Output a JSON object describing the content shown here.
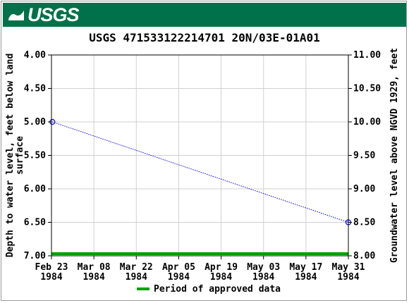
{
  "header": {
    "logo_text": "USGS",
    "banner_color": "#00714a"
  },
  "chart_data": {
    "type": "line",
    "title": "USGS 471533122214701 20N/03E-01A01",
    "ylabel_left": [
      "Depth to water level, feet below land",
      "surface"
    ],
    "ylabel_right": "Groundwater level above NGVD 1929, feet",
    "x_tick_labels": [
      [
        "Feb 23",
        "1984"
      ],
      [
        "Mar 08",
        "1984"
      ],
      [
        "Mar 22",
        "1984"
      ],
      [
        "Apr 05",
        "1984"
      ],
      [
        "Apr 19",
        "1984"
      ],
      [
        "May 03",
        "1984"
      ],
      [
        "May 17",
        "1984"
      ],
      [
        "May 31",
        "1984"
      ]
    ],
    "xlim_days": [
      0,
      98
    ],
    "ylim_left": [
      4.0,
      7.0
    ],
    "ylim_right": [
      11.0,
      8.0
    ],
    "y_ticks_left": [
      "4.00",
      "4.50",
      "5.00",
      "5.50",
      "6.00",
      "6.50",
      "7.00"
    ],
    "y_ticks_right": [
      "11.00",
      "10.50",
      "10.00",
      "9.50",
      "9.00",
      "8.50",
      "8.00"
    ],
    "series": [
      {
        "x_days": [
          0.3,
          98
        ],
        "x_dates": [
          "1984-02-23",
          "1984-05-31"
        ],
        "depth": [
          5.0,
          6.5
        ],
        "elevation": [
          10.0,
          8.5
        ],
        "color": "#0000cc"
      }
    ],
    "approved_period": {
      "label": "Period of approved data",
      "color": "#00a000",
      "x_days": [
        0,
        98
      ]
    },
    "grid": true
  }
}
